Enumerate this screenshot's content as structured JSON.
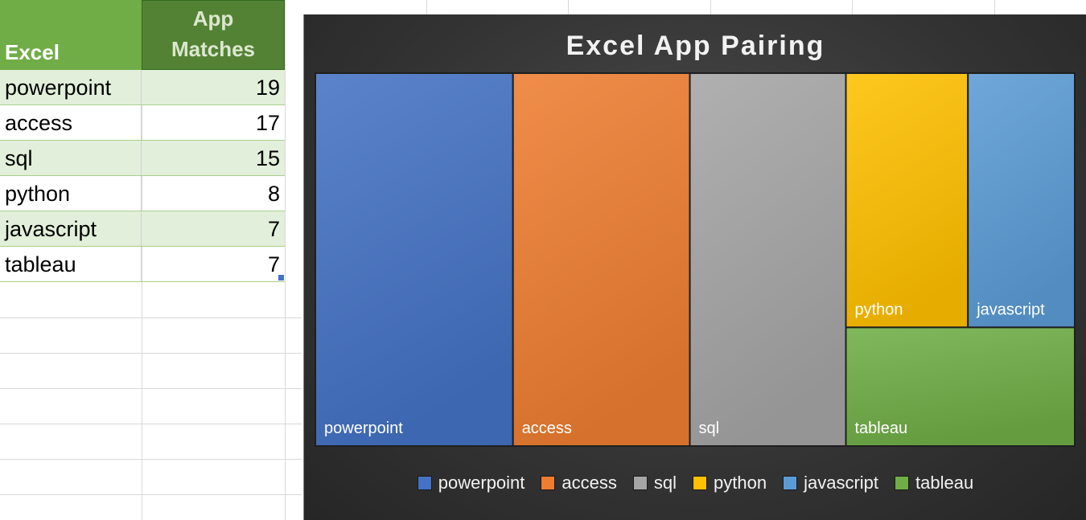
{
  "sheet": {
    "headers": [
      "Excel",
      "App Matches"
    ],
    "rows": [
      {
        "app": "powerpoint",
        "matches": "19"
      },
      {
        "app": "access",
        "matches": "17"
      },
      {
        "app": "sql",
        "matches": "15"
      },
      {
        "app": "python",
        "matches": "8"
      },
      {
        "app": "javascript",
        "matches": "7"
      },
      {
        "app": "tableau",
        "matches": "7"
      }
    ]
  },
  "chart_data": {
    "type": "treemap",
    "title": "Excel App Pairing",
    "categories": [
      "powerpoint",
      "access",
      "sql",
      "python",
      "javascript",
      "tableau"
    ],
    "values": [
      19,
      17,
      15,
      8,
      7,
      7
    ],
    "colors": [
      "#4472c4",
      "#ed7d31",
      "#a5a5a5",
      "#ffc000",
      "#5b9bd5",
      "#70ad47"
    ],
    "legend_position": "bottom"
  }
}
